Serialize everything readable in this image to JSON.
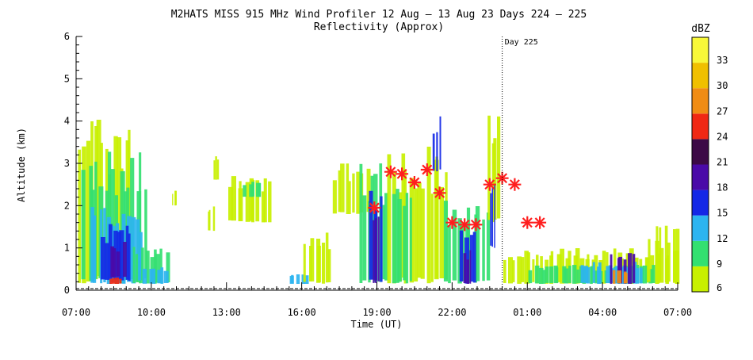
{
  "chart_data": {
    "type": "heatmap",
    "title": "M2HATS MISS 915 MHz Wind Profiler  12 Aug – 13 Aug 23 Days 224 – 225",
    "subtitle": "Reflectivity (Approx)",
    "xlabel": "Time (UT)",
    "ylabel": "Altitude (km)",
    "x_unit_hours_since_0700": true,
    "xlim": [
      0,
      24
    ],
    "ylim": [
      0,
      6
    ],
    "x_ticks": [
      {
        "t": 0,
        "label": "07:00"
      },
      {
        "t": 3,
        "label": "10:00"
      },
      {
        "t": 6,
        "label": "13:00"
      },
      {
        "t": 9,
        "label": "16:00"
      },
      {
        "t": 12,
        "label": "19:00"
      },
      {
        "t": 15,
        "label": "22:00"
      },
      {
        "t": 18,
        "label": "01:00"
      },
      {
        "t": 21,
        "label": "04:00"
      },
      {
        "t": 24,
        "label": "07:00"
      }
    ],
    "y_ticks": [
      {
        "v": 0,
        "label": "0"
      },
      {
        "v": 1,
        "label": "1"
      },
      {
        "v": 2,
        "label": "2"
      },
      {
        "v": 3,
        "label": "3"
      },
      {
        "v": 4,
        "label": "4"
      },
      {
        "v": 5,
        "label": "5"
      },
      {
        "v": 6,
        "label": "6"
      }
    ],
    "day_marker": {
      "t": 17.0,
      "label": "Day 225"
    },
    "colorbar": {
      "unit": "dBZ",
      "range": [
        6,
        36
      ],
      "levels": [
        {
          "from": 6,
          "to": 9,
          "color": "#c8f000"
        },
        {
          "from": 9,
          "to": 12,
          "color": "#33e070"
        },
        {
          "from": 12,
          "to": 15,
          "color": "#2db4f0"
        },
        {
          "from": 15,
          "to": 18,
          "color": "#1428e6"
        },
        {
          "from": 18,
          "to": 21,
          "color": "#4a0aa8"
        },
        {
          "from": 21,
          "to": 24,
          "color": "#3c0a46"
        },
        {
          "from": 24,
          "to": 27,
          "color": "#f02814"
        },
        {
          "from": 27,
          "to": 30,
          "color": "#f08c14"
        },
        {
          "from": 30,
          "to": 33,
          "color": "#f0c000"
        },
        {
          "from": 33,
          "to": 36,
          "color": "#f8f838"
        }
      ],
      "tick_labels": [
        {
          "v": 6,
          "label": "6"
        },
        {
          "v": 9,
          "label": "9"
        },
        {
          "v": 12,
          "label": "12"
        },
        {
          "v": 15,
          "label": "15"
        },
        {
          "v": 18,
          "label": "18"
        },
        {
          "v": 21,
          "label": "21"
        },
        {
          "v": 24,
          "label": "24"
        },
        {
          "v": 27,
          "label": "27"
        },
        {
          "v": 30,
          "label": "30"
        },
        {
          "v": 33,
          "label": "33"
        }
      ]
    },
    "series": [
      {
        "marker": "red-asterisk",
        "points": [
          {
            "t": 11.9,
            "alt": 1.95
          },
          {
            "t": 12.55,
            "alt": 2.8
          },
          {
            "t": 13.0,
            "alt": 2.75
          },
          {
            "t": 13.5,
            "alt": 2.55
          },
          {
            "t": 14.0,
            "alt": 2.85
          },
          {
            "t": 14.5,
            "alt": 2.3
          },
          {
            "t": 15.0,
            "alt": 1.6
          },
          {
            "t": 15.5,
            "alt": 1.55
          },
          {
            "t": 15.95,
            "alt": 1.55
          },
          {
            "t": 16.5,
            "alt": 2.5
          },
          {
            "t": 17.0,
            "alt": 2.65
          },
          {
            "t": 17.5,
            "alt": 2.5
          },
          {
            "t": 18.0,
            "alt": 1.6
          },
          {
            "t": 18.5,
            "alt": 1.6
          }
        ]
      }
    ],
    "reflectivity_regions": [
      {
        "t0": 0.0,
        "t1": 2.2,
        "a0": 0.15,
        "a1": 4.1,
        "dbz": 8
      },
      {
        "t0": 0.2,
        "t1": 2.8,
        "a0": 0.15,
        "a1": 3.3,
        "dbz": 10
      },
      {
        "t0": 0.5,
        "t1": 2.6,
        "a0": 0.15,
        "a1": 2.0,
        "dbz": 13
      },
      {
        "t0": 0.9,
        "t1": 2.2,
        "a0": 0.2,
        "a1": 1.6,
        "dbz": 17
      },
      {
        "t0": 1.2,
        "t1": 1.9,
        "a0": 0.3,
        "a1": 1.2,
        "dbz": 20
      },
      {
        "t0": 1.2,
        "t1": 1.8,
        "a0": 0.15,
        "a1": 0.3,
        "dbz": 26
      },
      {
        "t0": 2.2,
        "t1": 3.6,
        "a0": 0.15,
        "a1": 1.1,
        "dbz": 10
      },
      {
        "t0": 2.6,
        "t1": 3.6,
        "a0": 0.15,
        "a1": 0.6,
        "dbz": 14
      },
      {
        "t0": 3.8,
        "t1": 4.0,
        "a0": 2.0,
        "a1": 2.4,
        "dbz": 8
      },
      {
        "t0": 5.4,
        "t1": 5.7,
        "a0": 2.6,
        "a1": 3.2,
        "dbz": 8
      },
      {
        "t0": 5.2,
        "t1": 5.5,
        "a0": 1.4,
        "a1": 2.0,
        "dbz": 8
      },
      {
        "t0": 6.0,
        "t1": 7.8,
        "a0": 1.6,
        "a1": 2.7,
        "dbz": 8
      },
      {
        "t0": 6.6,
        "t1": 7.4,
        "a0": 2.2,
        "a1": 2.6,
        "dbz": 11
      },
      {
        "t0": 8.4,
        "t1": 9.2,
        "a0": 0.15,
        "a1": 0.4,
        "dbz": 12
      },
      {
        "t0": 9.0,
        "t1": 10.2,
        "a0": 0.15,
        "a1": 1.4,
        "dbz": 8
      },
      {
        "t0": 10.2,
        "t1": 11.6,
        "a0": 1.8,
        "a1": 3.0,
        "dbz": 8
      },
      {
        "t0": 11.2,
        "t1": 12.4,
        "a0": 0.15,
        "a1": 3.0,
        "dbz": 10
      },
      {
        "t0": 11.6,
        "t1": 12.2,
        "a0": 0.15,
        "a1": 2.6,
        "dbz": 17
      },
      {
        "t0": 11.8,
        "t1": 12.1,
        "a0": 0.15,
        "a1": 1.8,
        "dbz": 20
      },
      {
        "t0": 12.4,
        "t1": 14.8,
        "a0": 0.15,
        "a1": 3.4,
        "dbz": 8
      },
      {
        "t0": 12.5,
        "t1": 13.4,
        "a0": 0.15,
        "a1": 2.4,
        "dbz": 11
      },
      {
        "t0": 14.2,
        "t1": 14.5,
        "a0": 2.8,
        "a1": 4.15,
        "dbz": 17
      },
      {
        "t0": 14.6,
        "t1": 16.4,
        "a0": 0.15,
        "a1": 2.2,
        "dbz": 10
      },
      {
        "t0": 15.2,
        "t1": 15.9,
        "a0": 0.15,
        "a1": 1.5,
        "dbz": 15
      },
      {
        "t0": 15.4,
        "t1": 15.7,
        "a0": 0.15,
        "a1": 1.0,
        "dbz": 20
      },
      {
        "t0": 16.3,
        "t1": 16.9,
        "a0": 1.6,
        "a1": 4.15,
        "dbz": 8
      },
      {
        "t0": 16.5,
        "t1": 16.7,
        "a0": 1.0,
        "a1": 2.6,
        "dbz": 16
      },
      {
        "t0": 17.0,
        "t1": 24.0,
        "a0": 0.15,
        "a1": 1.0,
        "dbz": 8
      },
      {
        "t0": 18.0,
        "t1": 23.0,
        "a0": 0.15,
        "a1": 0.6,
        "dbz": 10
      },
      {
        "t0": 20.0,
        "t1": 22.6,
        "a0": 0.15,
        "a1": 0.7,
        "dbz": 14
      },
      {
        "t0": 21.3,
        "t1": 22.2,
        "a0": 0.15,
        "a1": 0.9,
        "dbz": 18
      },
      {
        "t0": 21.4,
        "t1": 22.0,
        "a0": 0.15,
        "a1": 0.5,
        "dbz": 28
      },
      {
        "t0": 22.8,
        "t1": 24.0,
        "a0": 0.15,
        "a1": 1.6,
        "dbz": 8
      }
    ]
  }
}
